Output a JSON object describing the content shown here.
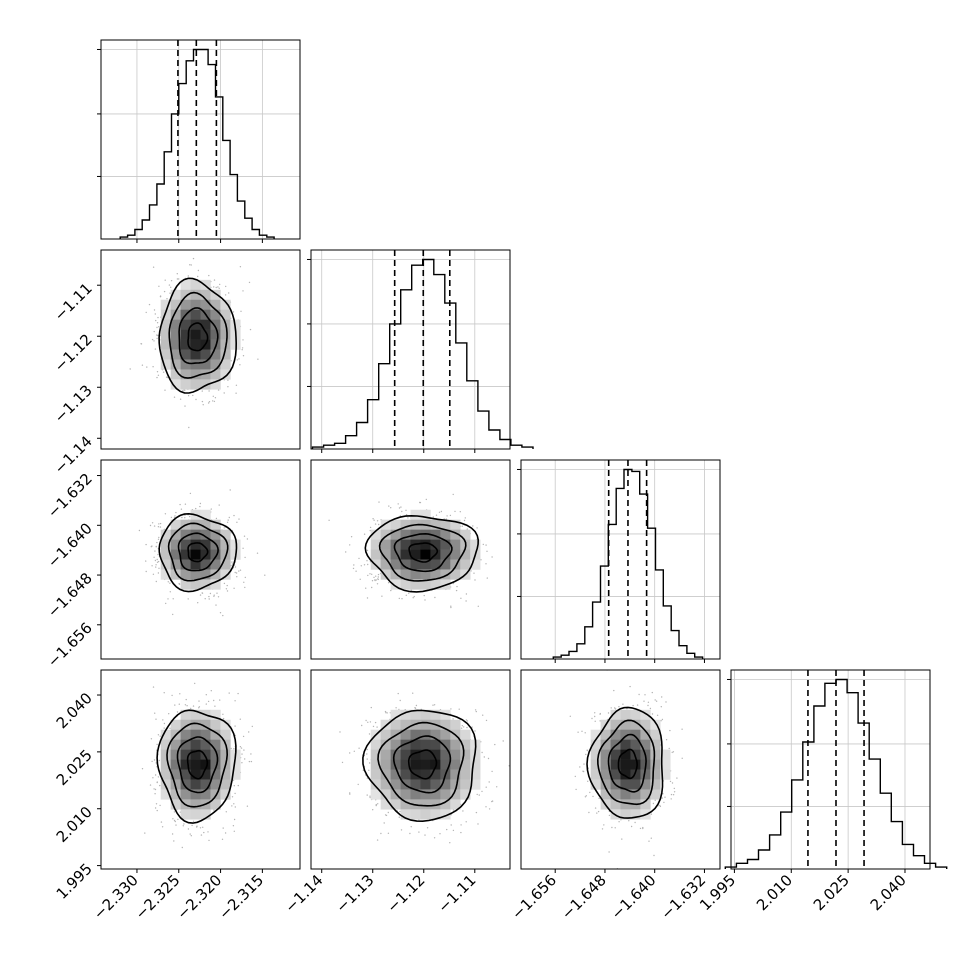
{
  "chart_data": {
    "type": "corner",
    "grid": true,
    "parameters": [
      {
        "range": [
          -2.3343,
          -2.3105
        ],
        "ticks": [
          -2.33,
          -2.325,
          -2.32,
          -2.315
        ],
        "tick_labels": [
          "−2.330",
          "−2.325",
          "−2.320",
          "−2.315"
        ],
        "quantiles": [
          -2.3251,
          -2.3229,
          -2.3205
        ],
        "mean": -2.3228,
        "sd": 0.0023,
        "hist": [
          0.01,
          0.02,
          0.05,
          0.1,
          0.18,
          0.29,
          0.46,
          0.66,
          0.82,
          0.94,
          1.0,
          1.0,
          0.92,
          0.75,
          0.52,
          0.34,
          0.2,
          0.11,
          0.05,
          0.02,
          0.01
        ]
      },
      {
        "range": [
          -1.1421,
          -1.1031
        ],
        "ticks": [
          -1.14,
          -1.13,
          -1.12,
          -1.11
        ],
        "tick_labels": [
          "−1.14",
          "−1.13",
          "−1.12",
          "−1.11"
        ],
        "quantiles": [
          -1.1257,
          -1.1201,
          -1.1149
        ],
        "mean": -1.1202,
        "sd": 0.0054,
        "hist": [
          0.01,
          0.02,
          0.03,
          0.07,
          0.14,
          0.26,
          0.45,
          0.66,
          0.84,
          0.97,
          1.0,
          0.92,
          0.77,
          0.56,
          0.36,
          0.2,
          0.1,
          0.05,
          0.02,
          0.01
        ]
      },
      {
        "range": [
          -1.6615,
          -1.6295
        ],
        "ticks": [
          -1.656,
          -1.648,
          -1.64,
          -1.632
        ],
        "tick_labels": [
          "−1.656",
          "−1.648",
          "−1.640",
          "−1.632"
        ],
        "quantiles": [
          -1.6474,
          -1.6443,
          -1.6413
        ],
        "mean": -1.6443,
        "sd": 0.003,
        "hist": [
          0.01,
          0.02,
          0.04,
          0.08,
          0.17,
          0.3,
          0.49,
          0.71,
          0.9,
          1.0,
          0.99,
          0.87,
          0.69,
          0.47,
          0.28,
          0.15,
          0.07,
          0.03,
          0.01
        ]
      },
      {
        "range": [
          1.9941,
          2.0466
        ],
        "ticks": [
          1.995,
          2.01,
          2.025,
          2.04
        ],
        "tick_labels": [
          "1.995",
          "2.010",
          "2.025",
          "2.040"
        ],
        "quantiles": [
          2.0144,
          2.0218,
          2.0292
        ],
        "mean": 2.0218,
        "sd": 0.0073,
        "hist": [
          0.01,
          0.03,
          0.05,
          0.1,
          0.18,
          0.3,
          0.47,
          0.67,
          0.86,
          0.98,
          1.0,
          0.93,
          0.77,
          0.58,
          0.4,
          0.25,
          0.13,
          0.07,
          0.03,
          0.01
        ]
      }
    ],
    "hist_ylim": [
      0,
      1.05
    ],
    "hist_yticks": [
      0.33,
      0.66,
      1.0
    ],
    "contour_levels_sigma": [
      0.5,
      1.0,
      1.5,
      2.0
    ]
  }
}
